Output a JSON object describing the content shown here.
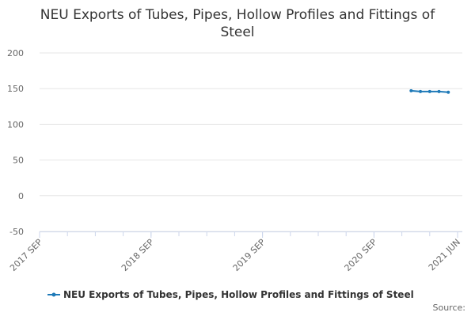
{
  "chart_data": {
    "type": "line",
    "title": "NEU Exports of Tubes, Pipes, Hollow Profiles and Fittings of Steel",
    "x": [
      "2021-01",
      "2021-02",
      "2021-03",
      "2021-04",
      "2021-05"
    ],
    "series": [
      {
        "name": "NEU Exports of Tubes, Pipes, Hollow Profiles and Fittings of Steel",
        "color": "#1f7ab8",
        "values": [
          147,
          146,
          146,
          146,
          145
        ]
      }
    ],
    "xlim": [
      "2017-09",
      "2021-06"
    ],
    "xticks": [
      {
        "value": "2017-09",
        "label": "2017 SEP"
      },
      {
        "value": "2018-09",
        "label": "2018 SEP"
      },
      {
        "value": "2019-09",
        "label": "2019 SEP"
      },
      {
        "value": "2020-09",
        "label": "2020 SEP"
      },
      {
        "value": "2021-06",
        "label": "2021 JUN"
      }
    ],
    "ylim": [
      -50,
      200
    ],
    "yticks": [
      -50,
      0,
      50,
      100,
      150,
      200
    ],
    "grid": true,
    "source": "Source:"
  }
}
